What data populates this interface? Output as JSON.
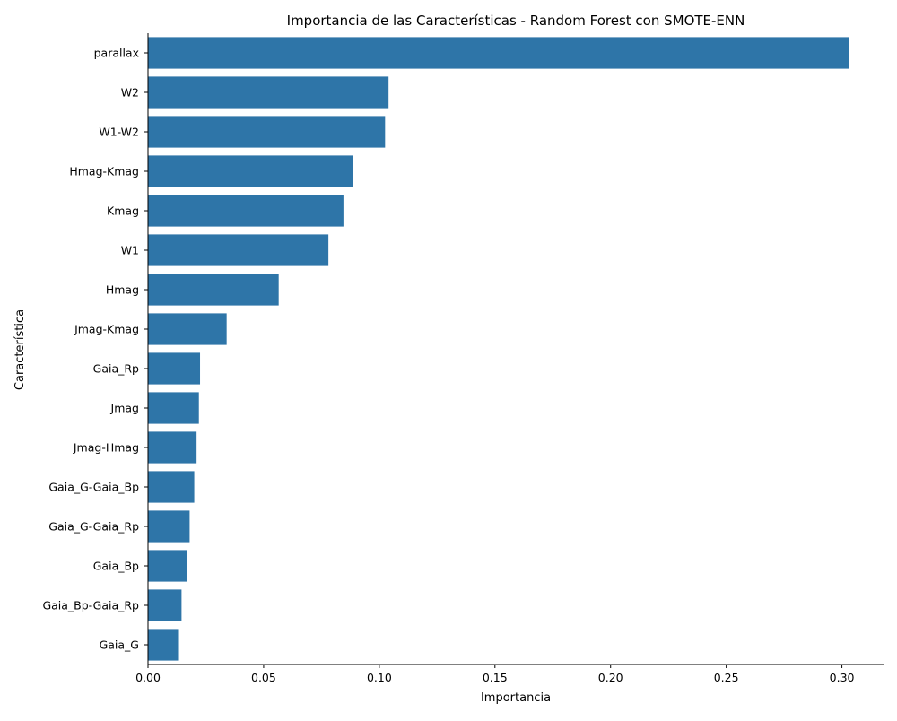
{
  "chart_data": {
    "type": "bar",
    "orientation": "horizontal",
    "title": "Importancia de las Características - Random Forest con SMOTE-ENN",
    "xlabel": "Importancia",
    "ylabel": "Característica",
    "categories": [
      "parallax",
      "W2",
      "W1-W2",
      "Hmag-Kmag",
      "Kmag",
      "W1",
      "Hmag",
      "Jmag-Kmag",
      "Gaia_Rp",
      "Jmag",
      "Jmag-Hmag",
      "Gaia_G-Gaia_Bp",
      "Gaia_G-Gaia_Rp",
      "Gaia_Bp",
      "Gaia_Bp-Gaia_Rp",
      "Gaia_G"
    ],
    "values": [
      0.303,
      0.104,
      0.1025,
      0.0885,
      0.0845,
      0.078,
      0.0565,
      0.034,
      0.0225,
      0.022,
      0.021,
      0.02,
      0.018,
      0.017,
      0.0145,
      0.013
    ],
    "xlim": [
      0,
      0.318
    ],
    "xticks": [
      "0.00",
      "0.05",
      "0.10",
      "0.15",
      "0.20",
      "0.25",
      "0.30"
    ],
    "xtick_values": [
      0,
      0.05,
      0.1,
      0.15,
      0.2,
      0.25,
      0.3
    ],
    "bar_color": "#2e75a8",
    "grid": false,
    "legend": "none"
  }
}
